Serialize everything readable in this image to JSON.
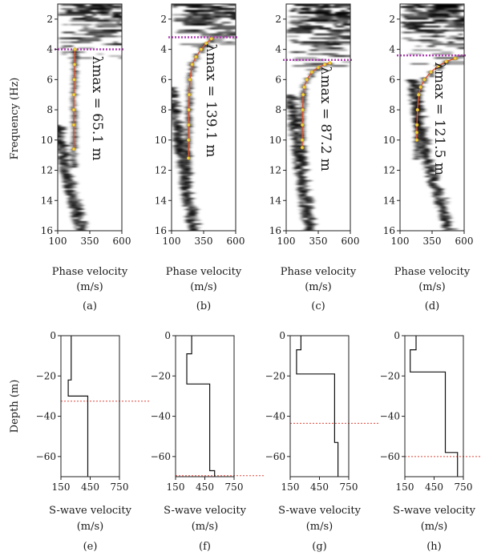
{
  "figure": {
    "top_ylabel": "Frequency (Hz)",
    "bottom_ylabel": "Depth (m)",
    "top_xlabel_line1": "Phase velocity",
    "top_xlabel_line2": "(m/s)",
    "bottom_xlabel_line1": "S-wave velocity",
    "bottom_xlabel_line2": "(m/s)"
  },
  "chart_data": [
    {
      "type": "heatmap",
      "label": "(a)",
      "xlabel": "Phase velocity (m/s)",
      "ylabel": "Frequency (Hz)",
      "xlim": [
        100,
        600
      ],
      "ylim": [
        16,
        1
      ],
      "xticks": [
        100,
        350,
        600
      ],
      "yticks": [
        2,
        4,
        6,
        8,
        10,
        12,
        14,
        16
      ],
      "annotation": "λmax = 65.1 m",
      "cutoff_frequency": 4.0,
      "picked_curve": {
        "x": [
          225,
          225,
          225,
          226,
          228,
          231,
          234
        ],
        "y": [
          10.6,
          9,
          8,
          7,
          6,
          5,
          4
        ]
      },
      "band_front": [
        [
          100,
          9
        ],
        [
          150,
          11
        ],
        [
          200,
          13
        ],
        [
          260,
          15
        ],
        [
          300,
          16
        ]
      ]
    },
    {
      "type": "heatmap",
      "label": "(b)",
      "xlabel": "Phase velocity (m/s)",
      "ylabel": "Frequency (Hz)",
      "xlim": [
        100,
        600
      ],
      "ylim": [
        16,
        1
      ],
      "xticks": [
        100,
        350,
        600
      ],
      "yticks": [
        2,
        4,
        6,
        8,
        10,
        12,
        14,
        16
      ],
      "annotation": "λmax = 139.1 m",
      "cutoff_frequency": 3.2,
      "picked_curve": {
        "x": [
          232,
          232,
          233,
          234,
          237,
          243,
          260,
          290,
          330,
          370,
          410
        ],
        "y": [
          11.2,
          10,
          9,
          8,
          7,
          6,
          5,
          4.5,
          4.0,
          3.6,
          3.3
        ]
      },
      "band_front": [
        [
          100,
          6.5
        ],
        [
          150,
          9
        ],
        [
          200,
          12
        ],
        [
          260,
          15
        ],
        [
          280,
          16
        ]
      ]
    },
    {
      "type": "heatmap",
      "label": "(c)",
      "xlabel": "Phase velocity (m/s)",
      "ylabel": "Frequency (Hz)",
      "xlim": [
        100,
        600
      ],
      "ylim": [
        16,
        1
      ],
      "xticks": [
        100,
        350,
        600
      ],
      "yticks": [
        2,
        4,
        6,
        8,
        10,
        12,
        14,
        16
      ],
      "annotation": "λmax = 87.2 m",
      "cutoff_frequency": 4.7,
      "picked_curve": {
        "x": [
          225,
          225,
          226,
          228,
          232,
          240,
          260,
          300,
          350,
          400,
          440
        ],
        "y": [
          10.5,
          10,
          9,
          8,
          7,
          6.5,
          6,
          5.5,
          5.2,
          5.0,
          4.9
        ]
      },
      "band_front": [
        [
          140,
          7
        ],
        [
          180,
          9.5
        ],
        [
          220,
          12
        ],
        [
          270,
          15
        ],
        [
          290,
          16
        ]
      ]
    },
    {
      "type": "heatmap",
      "label": "(d)",
      "xlabel": "Phase velocity (m/s)",
      "ylabel": "Frequency (Hz)",
      "xlim": [
        100,
        600
      ],
      "ylim": [
        16,
        1
      ],
      "xticks": [
        100,
        350,
        600
      ],
      "yticks": [
        2,
        4,
        6,
        8,
        10,
        12,
        14,
        16
      ],
      "annotation": "λmax = 121.5 m",
      "cutoff_frequency": 4.4,
      "picked_curve": {
        "x": [
          230,
          230,
          232,
          236,
          245,
          260,
          290,
          340,
          400,
          460,
          530
        ],
        "y": [
          10,
          9.5,
          9,
          8,
          7,
          6.5,
          6,
          5.5,
          5.1,
          4.8,
          4.6
        ]
      },
      "band_front": [
        [
          200,
          6
        ],
        [
          260,
          9
        ],
        [
          340,
          12
        ],
        [
          420,
          14
        ],
        [
          480,
          15.5
        ]
      ]
    },
    {
      "type": "line",
      "label": "(e)",
      "xlabel": "S-wave velocity (m/s)",
      "ylabel": "Depth (m)",
      "xlim": [
        150,
        750
      ],
      "ylim": [
        -70,
        0
      ],
      "xticks": [
        150,
        450,
        750
      ],
      "yticks": [
        0,
        -20,
        -40,
        -60
      ],
      "profile": {
        "x": [
          255,
          255,
          225,
          225,
          425,
          425
        ],
        "y": [
          0,
          -22,
          -22,
          -30,
          -30,
          -70
        ]
      },
      "reference_depth": -32.5
    },
    {
      "type": "line",
      "label": "(f)",
      "xlabel": "S-wave velocity (m/s)",
      "ylabel": "Depth (m)",
      "xlim": [
        150,
        750
      ],
      "ylim": [
        -70,
        0
      ],
      "xticks": [
        150,
        450,
        750
      ],
      "yticks": [
        0,
        -20,
        -40,
        -60
      ],
      "profile": {
        "x": [
          315,
          315,
          265,
          265,
          500,
          500,
          550,
          550
        ],
        "y": [
          0,
          -9,
          -9,
          -24,
          -24,
          -67,
          -67,
          -70
        ]
      },
      "reference_depth": -69.5
    },
    {
      "type": "line",
      "label": "(g)",
      "xlabel": "S-wave velocity (m/s)",
      "ylabel": "Depth (m)",
      "xlim": [
        150,
        750
      ],
      "ylim": [
        -70,
        0
      ],
      "xticks": [
        150,
        450,
        750
      ],
      "yticks": [
        0,
        -20,
        -40,
        -60
      ],
      "profile": {
        "x": [
          260,
          260,
          215,
          215,
          605,
          605,
          640,
          640
        ],
        "y": [
          0,
          -7,
          -7,
          -19,
          -19,
          -53,
          -53,
          -70
        ]
      },
      "reference_depth": -43.5
    },
    {
      "type": "line",
      "label": "(h)",
      "xlabel": "S-wave velocity (m/s)",
      "ylabel": "Depth (m)",
      "xlim": [
        150,
        750
      ],
      "ylim": [
        -70,
        0
      ],
      "xticks": [
        150,
        450,
        750
      ],
      "yticks": [
        0,
        -20,
        -40,
        -60
      ],
      "profile": {
        "x": [
          265,
          265,
          205,
          205,
          565,
          565,
          690,
          690
        ],
        "y": [
          0,
          -7,
          -7,
          -18,
          -18,
          -58,
          -58,
          -70
        ]
      },
      "reference_depth": -60
    }
  ]
}
